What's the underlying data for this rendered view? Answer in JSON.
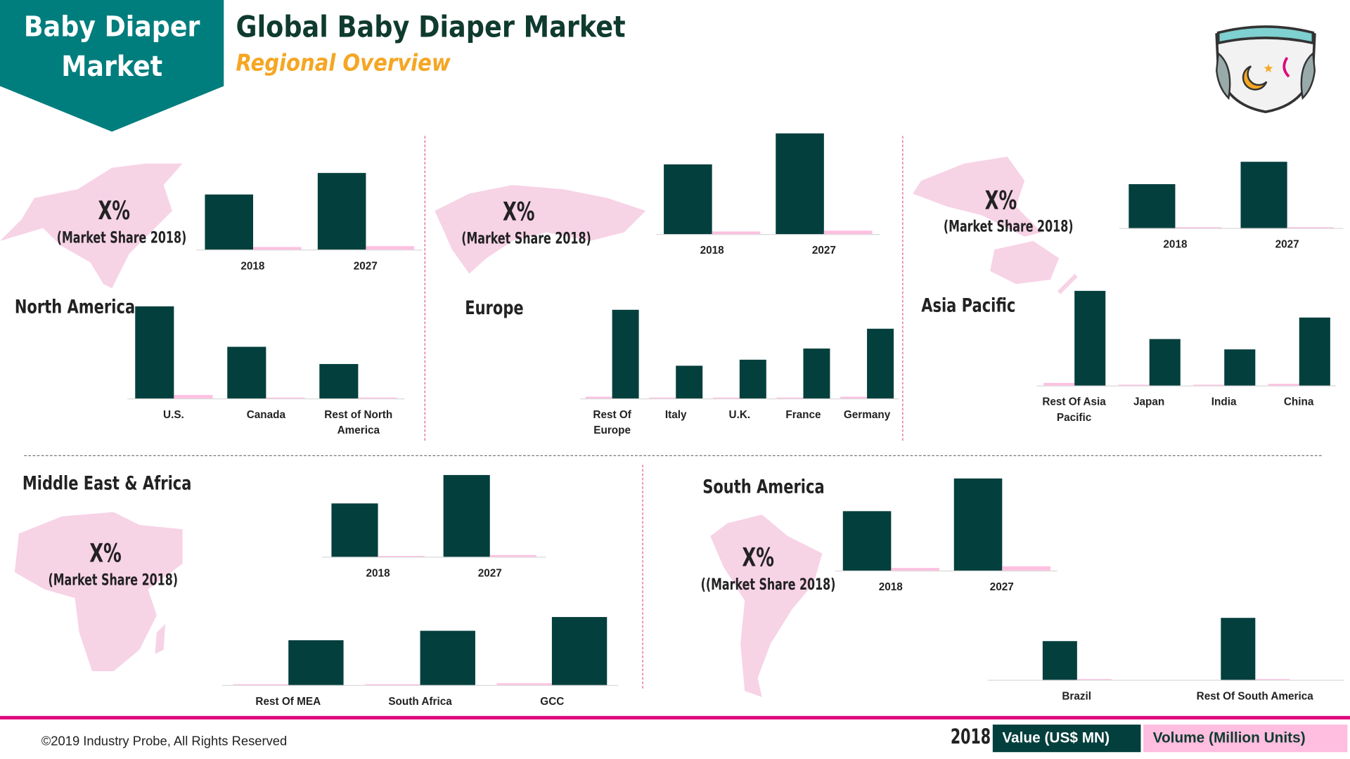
{
  "header": {
    "badge_line1": "Baby Diaper",
    "badge_line2": "Market",
    "title": "Global Baby Diaper Market",
    "subtitle": "Regional Overview",
    "diaper_icon": "diaper-icon"
  },
  "colors": {
    "brand_teal": "#007d7d",
    "value": "#033f3d",
    "volume": "#ffc0e0",
    "accent_pink": "#e0007a",
    "subtitle": "#f5a623"
  },
  "regions": {
    "north_america": {
      "name": "North America",
      "share_value": "X%",
      "share_label": "(Market Share 2018)"
    },
    "europe": {
      "name": "Europe",
      "share_value": "X%",
      "share_label": "(Market Share 2018)"
    },
    "asia_pacific": {
      "name": "Asia Pacific",
      "share_value": "X%",
      "share_label": "(Market Share 2018)"
    },
    "mea": {
      "name": "Middle East & Africa",
      "share_value": "X%",
      "share_label": "(Market Share 2018)"
    },
    "south_america": {
      "name": "South America",
      "share_value": "X%",
      "share_label": "((Market Share 2018)"
    }
  },
  "legend": {
    "year": "2018",
    "value_label": "Value (US$ MN)",
    "volume_label": "Volume (Million Units)"
  },
  "footer": {
    "copyright": "©2019 Industry Probe, All Rights Reserved"
  },
  "chart_data": [
    {
      "id": "na_top",
      "type": "bar",
      "categories": [
        "2018",
        "2027"
      ],
      "series": [
        {
          "name": "Value (US$ MN)",
          "values": [
            64,
            89
          ]
        },
        {
          "name": "Volume (Million Units)",
          "values": [
            3,
            4
          ]
        }
      ]
    },
    {
      "id": "na_sub",
      "type": "bar",
      "categories": [
        "U.S.",
        "Canada",
        "Rest of North America"
      ],
      "series": [
        {
          "name": "Value (US$ MN)",
          "values": [
            107,
            60,
            40
          ]
        },
        {
          "name": "Volume (Million Units)",
          "values": [
            4,
            1,
            0
          ]
        }
      ]
    },
    {
      "id": "eu_top",
      "type": "bar",
      "categories": [
        "2018",
        "2027"
      ],
      "series": [
        {
          "name": "Value (US$ MN)",
          "values": [
            81,
            117
          ]
        },
        {
          "name": "Volume (Million Units)",
          "values": [
            3,
            4
          ]
        }
      ]
    },
    {
      "id": "eu_sub",
      "type": "bar",
      "categories": [
        "Rest Of Europe",
        "Italy",
        "U.K.",
        "France",
        "Germany"
      ],
      "series": [
        {
          "name": "Value (US$ MN)",
          "values": [
            103,
            38,
            45,
            58,
            81
          ]
        },
        {
          "name": "Volume (Million Units)",
          "values": [
            2,
            0,
            0,
            1,
            2
          ]
        }
      ]
    },
    {
      "id": "ap_top",
      "type": "bar",
      "categories": [
        "2018",
        "2027"
      ],
      "series": [
        {
          "name": "Value (US$ MN)",
          "values": [
            51,
            77
          ]
        },
        {
          "name": "Volume (Million Units)",
          "values": [
            0,
            1
          ]
        }
      ]
    },
    {
      "id": "ap_sub",
      "type": "bar",
      "categories": [
        "Rest Of Asia Pacific",
        "Japan",
        "India",
        "China"
      ],
      "series": [
        {
          "name": "Value (US$ MN)",
          "values": [
            110,
            54,
            42,
            79
          ]
        },
        {
          "name": "Volume (Million Units)",
          "values": [
            3,
            1,
            0,
            2
          ]
        }
      ]
    },
    {
      "id": "mea_top",
      "type": "bar",
      "categories": [
        "2018",
        "2027"
      ],
      "series": [
        {
          "name": "Value (US$ MN)",
          "values": [
            62,
            95
          ]
        },
        {
          "name": "Volume (Million Units)",
          "values": [
            1,
            2
          ]
        }
      ]
    },
    {
      "id": "mea_sub",
      "type": "bar",
      "categories": [
        "Rest Of MEA",
        "South Africa",
        "GCC"
      ],
      "series": [
        {
          "name": "Value (US$ MN)",
          "values": [
            52,
            63,
            79
          ]
        },
        {
          "name": "Volume (Million Units)",
          "values": [
            0,
            1,
            2
          ]
        }
      ]
    },
    {
      "id": "sa_top",
      "type": "bar",
      "categories": [
        "2018",
        "2027"
      ],
      "series": [
        {
          "name": "Value (US$ MN)",
          "values": [
            69,
            107
          ]
        },
        {
          "name": "Volume (Million Units)",
          "values": [
            3,
            5
          ]
        }
      ]
    },
    {
      "id": "sa_sub",
      "type": "bar",
      "categories": [
        "Brazil",
        "Rest Of South America"
      ],
      "series": [
        {
          "name": "Value (US$ MN)",
          "values": [
            45,
            72
          ]
        },
        {
          "name": "Volume (Million Units)",
          "values": [
            0,
            1
          ]
        }
      ]
    }
  ]
}
